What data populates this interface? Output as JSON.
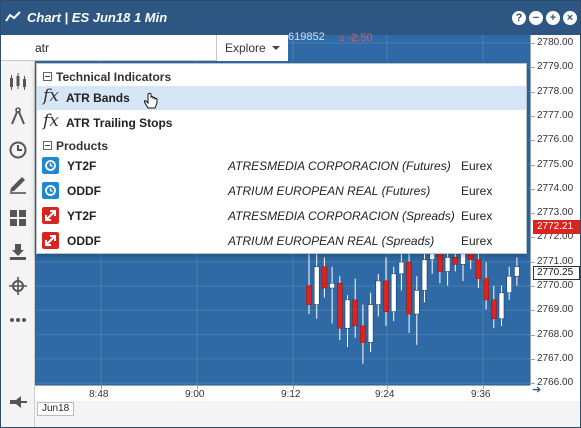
{
  "window": {
    "title": "Chart | ES Jun18 1 Min",
    "buttons": [
      "?",
      "−",
      "+",
      "×"
    ]
  },
  "search": {
    "value": "atr",
    "placeholder": "",
    "explore_label": "Explore"
  },
  "header": {
    "price": "619852",
    "change": "▵ -2.50"
  },
  "dropdown": {
    "indicators_header": "Technical Indicators",
    "indicators": [
      {
        "label": "ATR Bands",
        "highlighted": true
      },
      {
        "label": "ATR Trailing Stops",
        "highlighted": false
      }
    ],
    "products_header": "Products",
    "products": [
      {
        "symbol": "YT2F",
        "name": "ATRESMEDIA CORPORACION (Futures)",
        "exchange": "Eurex",
        "type": "futures"
      },
      {
        "symbol": "ODDF",
        "name": "ATRIUM EUROPEAN REAL (Futures)",
        "exchange": "Eurex",
        "type": "futures"
      },
      {
        "symbol": "YT2F",
        "name": "ATRESMEDIA CORPORACION (Spreads)",
        "exchange": "Eurex",
        "type": "spreads"
      },
      {
        "symbol": "ODDF",
        "name": "ATRIUM EUROPEAN REAL (Spreads)",
        "exchange": "Eurex",
        "type": "spreads"
      }
    ]
  },
  "price_axis": {
    "labels": [
      "2780.00",
      "2779.00",
      "2778.00",
      "2777.00",
      "2776.00",
      "2775.00",
      "2774.00",
      "2773.00",
      "2772.00",
      "2771.00",
      "2770.00",
      "2769.00",
      "2768.00",
      "2767.00",
      "2766.00"
    ],
    "current_red": "2772.21",
    "current_white": "2770.25"
  },
  "time_axis": {
    "labels": [
      "8:48",
      "9:00",
      "9:12",
      "9:24",
      "9:36"
    ]
  },
  "bottom": {
    "month_tag": "Jun18"
  },
  "colors": {
    "title_bar": "#2e5683",
    "chart_bg": "#2f6aa6",
    "candle_up": "#ffffff",
    "candle_down": "#d9241f",
    "futures_icon": "#1e88d3",
    "spreads_icon": "#d9241f",
    "highlight": "#d6e6f6"
  },
  "icons": [
    "chart-line-icon",
    "search-icon",
    "bars-icon",
    "compass-icon",
    "clock-icon",
    "pencil-icon",
    "grid-icon",
    "download-icon",
    "crosshair-icon",
    "more-icon",
    "pin-icon",
    "help-icon",
    "minimize-icon",
    "maximize-icon",
    "close-icon",
    "hand-cursor-icon"
  ],
  "chart_data": {
    "type": "candlestick",
    "candles": [
      {
        "o": 2769.8,
        "h": 2771.2,
        "l": 2768.6,
        "c": 2769.0
      },
      {
        "o": 2769.0,
        "h": 2771.5,
        "l": 2768.4,
        "c": 2770.6
      },
      {
        "o": 2770.6,
        "h": 2771.0,
        "l": 2769.3,
        "c": 2769.7
      },
      {
        "o": 2769.7,
        "h": 2770.6,
        "l": 2768.2,
        "c": 2769.9
      },
      {
        "o": 2769.9,
        "h": 2770.2,
        "l": 2767.5,
        "c": 2768.0
      },
      {
        "o": 2768.0,
        "h": 2769.4,
        "l": 2767.2,
        "c": 2769.2
      },
      {
        "o": 2769.2,
        "h": 2770.1,
        "l": 2767.6,
        "c": 2768.1
      },
      {
        "o": 2768.1,
        "h": 2769.0,
        "l": 2766.5,
        "c": 2767.4
      },
      {
        "o": 2767.4,
        "h": 2769.5,
        "l": 2767.0,
        "c": 2769.0
      },
      {
        "o": 2769.0,
        "h": 2770.3,
        "l": 2768.5,
        "c": 2770.0
      },
      {
        "o": 2770.0,
        "h": 2771.0,
        "l": 2768.1,
        "c": 2768.7
      },
      {
        "o": 2768.7,
        "h": 2770.6,
        "l": 2768.3,
        "c": 2770.3
      },
      {
        "o": 2770.3,
        "h": 2771.2,
        "l": 2769.6,
        "c": 2770.8
      },
      {
        "o": 2770.8,
        "h": 2771.5,
        "l": 2767.8,
        "c": 2768.6
      },
      {
        "o": 2768.6,
        "h": 2770.2,
        "l": 2767.3,
        "c": 2769.6
      },
      {
        "o": 2769.6,
        "h": 2771.4,
        "l": 2769.1,
        "c": 2770.9
      },
      {
        "o": 2770.9,
        "h": 2771.8,
        "l": 2770.3,
        "c": 2771.5
      },
      {
        "o": 2771.5,
        "h": 2772.1,
        "l": 2769.9,
        "c": 2770.4
      },
      {
        "o": 2770.4,
        "h": 2771.3,
        "l": 2769.8,
        "c": 2771.0
      },
      {
        "o": 2771.0,
        "h": 2771.9,
        "l": 2770.4,
        "c": 2770.7
      },
      {
        "o": 2770.7,
        "h": 2771.6,
        "l": 2770.0,
        "c": 2771.2
      },
      {
        "o": 2771.2,
        "h": 2771.7,
        "l": 2770.5,
        "c": 2770.9
      },
      {
        "o": 2770.9,
        "h": 2771.5,
        "l": 2769.7,
        "c": 2770.1
      },
      {
        "o": 2770.1,
        "h": 2770.8,
        "l": 2768.8,
        "c": 2769.2
      },
      {
        "o": 2769.2,
        "h": 2769.8,
        "l": 2768.0,
        "c": 2768.4
      },
      {
        "o": 2768.4,
        "h": 2769.8,
        "l": 2768.1,
        "c": 2769.5
      },
      {
        "o": 2769.5,
        "h": 2770.6,
        "l": 2769.2,
        "c": 2770.2
      },
      {
        "o": 2770.2,
        "h": 2771.0,
        "l": 2769.8,
        "c": 2770.6
      }
    ],
    "ylim": [
      2765.6,
      2780.4
    ]
  }
}
